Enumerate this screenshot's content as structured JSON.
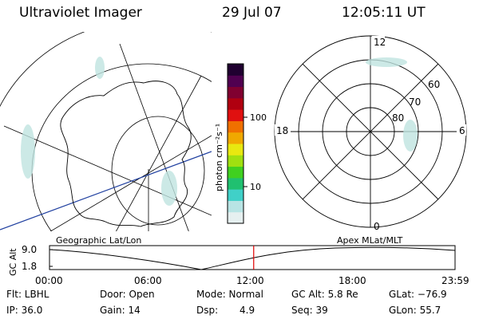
{
  "header": {
    "title": "Ultraviolet Imager",
    "date": "29 Jul 07",
    "time": "12:05:11 UT"
  },
  "colorbar": {
    "label": "photon cm⁻²s⁻¹",
    "ticks": [
      "100",
      "10"
    ],
    "colors": [
      "#e6f0f0",
      "#b8e4e4",
      "#40d0c8",
      "#20c070",
      "#40d020",
      "#a0e010",
      "#e8e810",
      "#f0a800",
      "#f07000",
      "#e01010",
      "#b00010",
      "#800030",
      "#500050",
      "#200030"
    ]
  },
  "polar_plot": {
    "labels": {
      "top": "12",
      "bottom": "0",
      "left": "18",
      "right": "6",
      "lat60": "60",
      "lat70": "70",
      "lat80": "80"
    }
  },
  "timeline": {
    "left_title": "Geographic Lat/Lon",
    "right_title": "Apex  MLat/MLT",
    "y_axis_label": "GC Alt",
    "y_max": "9.0",
    "y_min": "1.8",
    "x_ticks": [
      "00:00",
      "06:00",
      "12:00",
      "18:00",
      "23:59"
    ],
    "marker_time": "12:05",
    "marker_color": "#e00000"
  },
  "info": {
    "flt": "Flt: LBHL",
    "ip": "IP: 36.0",
    "door": "Door: Open",
    "gain": "Gain: 14",
    "mode": "Mode: Normal",
    "dsp_label": "Dsp:",
    "dsp_value": "4.9",
    "gcalt": "GC Alt: 5.8 Re",
    "seq": "Seq: 39",
    "glat": "GLat: −76.9",
    "glon": "GLon:  55.7"
  }
}
